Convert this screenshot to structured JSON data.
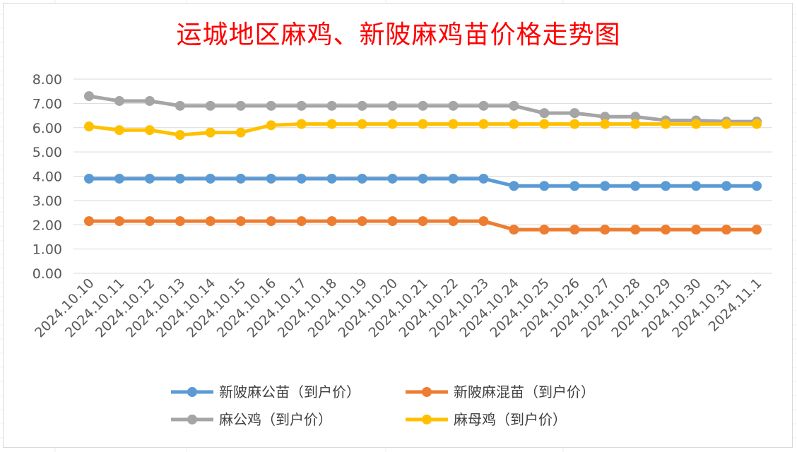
{
  "chart_data": {
    "type": "line",
    "title": "运城地区麻鸡、新陂麻鸡苗价格走势图",
    "xlabel": "",
    "ylabel": "",
    "ylim": [
      0,
      8
    ],
    "yticks": [
      "0.00",
      "1.00",
      "2.00",
      "3.00",
      "4.00",
      "5.00",
      "6.00",
      "7.00",
      "8.00"
    ],
    "grid": true,
    "legend_position": "bottom",
    "categories": [
      "2024.10.10",
      "2024.10.11",
      "2024.10.12",
      "2024.10.13",
      "2024.10.14",
      "2024.10.15",
      "2024.10.16",
      "2024.10.17",
      "2024.10.18",
      "2024.10.19",
      "2024.10.20",
      "2024.10.21",
      "2024.10.22",
      "2024.10.23",
      "2024.10.24",
      "2024.10.25",
      "2024.10.26",
      "2024.10.27",
      "2024.10.28",
      "2024.10.29",
      "2024.10.30",
      "2024.10.31",
      "2024.11.1"
    ],
    "series": [
      {
        "name": "新陂麻公苗（到户价）",
        "color": "#5b9bd5",
        "values": [
          3.9,
          3.9,
          3.9,
          3.9,
          3.9,
          3.9,
          3.9,
          3.9,
          3.9,
          3.9,
          3.9,
          3.9,
          3.9,
          3.9,
          3.6,
          3.6,
          3.6,
          3.6,
          3.6,
          3.6,
          3.6,
          3.6,
          3.6
        ]
      },
      {
        "name": "新陂麻混苗（到户价）",
        "color": "#ed7d31",
        "values": [
          2.15,
          2.15,
          2.15,
          2.15,
          2.15,
          2.15,
          2.15,
          2.15,
          2.15,
          2.15,
          2.15,
          2.15,
          2.15,
          2.15,
          1.8,
          1.8,
          1.8,
          1.8,
          1.8,
          1.8,
          1.8,
          1.8,
          1.8
        ]
      },
      {
        "name": "麻公鸡（到户价）",
        "color": "#a5a5a5",
        "values": [
          7.3,
          7.1,
          7.1,
          6.9,
          6.9,
          6.9,
          6.9,
          6.9,
          6.9,
          6.9,
          6.9,
          6.9,
          6.9,
          6.9,
          6.9,
          6.6,
          6.6,
          6.45,
          6.45,
          6.3,
          6.3,
          6.25,
          6.25
        ]
      },
      {
        "name": "麻母鸡（到户价）",
        "color": "#ffc000",
        "values": [
          6.05,
          5.9,
          5.9,
          5.7,
          5.8,
          5.8,
          6.1,
          6.15,
          6.15,
          6.15,
          6.15,
          6.15,
          6.15,
          6.15,
          6.15,
          6.15,
          6.15,
          6.15,
          6.15,
          6.15,
          6.15,
          6.15,
          6.15
        ]
      }
    ]
  }
}
